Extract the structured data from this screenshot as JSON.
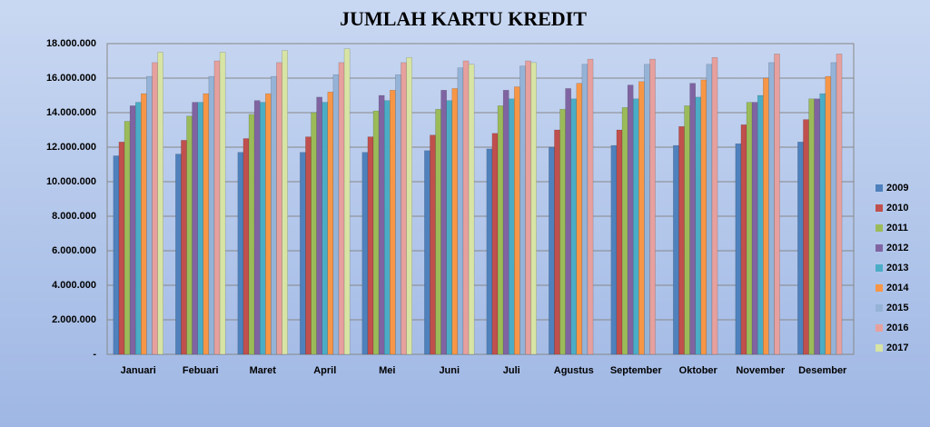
{
  "chart_data": {
    "type": "bar",
    "title": "JUMLAH KARTU KREDIT",
    "categories": [
      "Januari",
      "Febuari",
      "Maret",
      "April",
      "Mei",
      "Juni",
      "Juli",
      "Agustus",
      "September",
      "Oktober",
      "November",
      "Desember"
    ],
    "series": [
      {
        "name": "2009",
        "color": "#4f81bd",
        "values": [
          11500000,
          11600000,
          11700000,
          11700000,
          11700000,
          11800000,
          11900000,
          12000000,
          12100000,
          12100000,
          12200000,
          12300000
        ]
      },
      {
        "name": "2010",
        "color": "#c0504d",
        "values": [
          12300000,
          12400000,
          12500000,
          12600000,
          12600000,
          12700000,
          12800000,
          13000000,
          13000000,
          13200000,
          13300000,
          13600000
        ]
      },
      {
        "name": "2011",
        "color": "#9bbb59",
        "values": [
          13500000,
          13800000,
          13900000,
          14000000,
          14100000,
          14200000,
          14400000,
          14200000,
          14300000,
          14400000,
          14600000,
          14800000
        ]
      },
      {
        "name": "2012",
        "color": "#8064a2",
        "values": [
          14400000,
          14600000,
          14700000,
          14900000,
          15000000,
          15300000,
          15300000,
          15400000,
          15600000,
          15700000,
          14600000,
          14800000
        ]
      },
      {
        "name": "2013",
        "color": "#4bacc6",
        "values": [
          14600000,
          14600000,
          14600000,
          14600000,
          14700000,
          14700000,
          14800000,
          14800000,
          14800000,
          14900000,
          15000000,
          15100000
        ]
      },
      {
        "name": "2014",
        "color": "#f79646",
        "values": [
          15100000,
          15100000,
          15100000,
          15200000,
          15300000,
          15400000,
          15500000,
          15700000,
          15800000,
          15900000,
          16000000,
          16100000
        ]
      },
      {
        "name": "2015",
        "color": "#95b3d7",
        "values": [
          16100000,
          16100000,
          16100000,
          16200000,
          16200000,
          16600000,
          16700000,
          16800000,
          16800000,
          16800000,
          16900000,
          16900000
        ]
      },
      {
        "name": "2016",
        "color": "#e6a09e",
        "values": [
          16900000,
          17000000,
          16900000,
          16900000,
          16900000,
          17000000,
          17000000,
          17100000,
          17100000,
          17200000,
          17400000,
          17400000
        ]
      },
      {
        "name": "2017",
        "color": "#d7e4a4",
        "values": [
          17500000,
          17500000,
          17600000,
          17700000,
          17200000,
          16800000,
          16900000,
          null,
          null,
          null,
          null,
          null
        ]
      }
    ],
    "ylim": [
      0,
      18000000
    ],
    "yticks": [
      {
        "value": 0,
        "label": "-"
      },
      {
        "value": 2000000,
        "label": "2.000.000"
      },
      {
        "value": 4000000,
        "label": "4.000.000"
      },
      {
        "value": 6000000,
        "label": "6.000.000"
      },
      {
        "value": 8000000,
        "label": "8.000.000"
      },
      {
        "value": 10000000,
        "label": "10.000.000"
      },
      {
        "value": 12000000,
        "label": "12.000.000"
      },
      {
        "value": 14000000,
        "label": "14.000.000"
      },
      {
        "value": 16000000,
        "label": "16.000.000"
      },
      {
        "value": 18000000,
        "label": "18.000.000"
      }
    ],
    "grid": true,
    "legend": "right"
  }
}
